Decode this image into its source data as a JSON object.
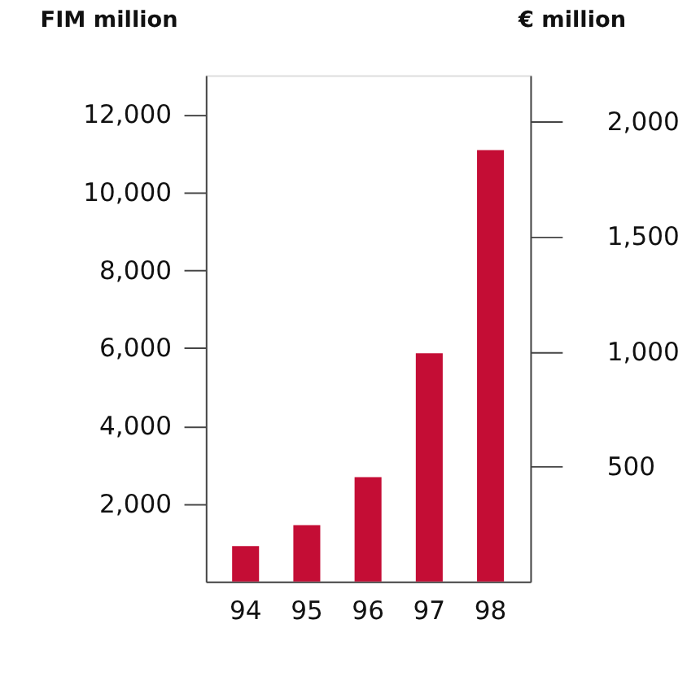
{
  "chart_data": {
    "type": "bar",
    "ylabel": "FIM million",
    "y2label": "€ million",
    "categories": [
      "94",
      "95",
      "96",
      "97",
      "98"
    ],
    "series": [
      {
        "color": "#c40d35",
        "values": [
          910,
          1450,
          2680,
          5860,
          11080
        ]
      }
    ],
    "ylim": [
      0,
      13000
    ],
    "yticks": [
      {
        "value": 2000,
        "label": "2,000"
      },
      {
        "value": 4000,
        "label": "4,000"
      },
      {
        "value": 6000,
        "label": "6,000"
      },
      {
        "value": 8000,
        "label": "8,000"
      },
      {
        "value": 10000,
        "label": "10,000"
      },
      {
        "value": 12000,
        "label": "12,000"
      }
    ],
    "y2lim": [
      0,
      2200
    ],
    "y2ticks": [
      500,
      {
        "value": 1000,
        "label": "1,000"
      },
      {
        "value": 1500,
        "label": "1,500"
      },
      {
        "value": 2000,
        "label": "2,000"
      }
    ],
    "grid": false
  }
}
